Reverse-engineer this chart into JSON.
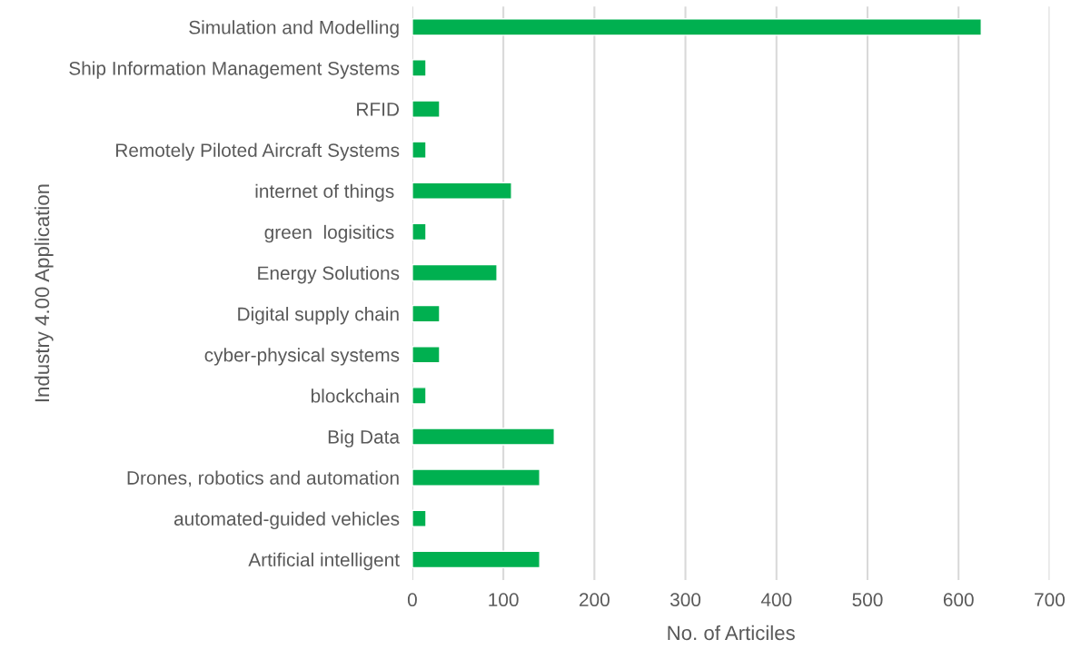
{
  "chart_data": {
    "type": "bar",
    "orientation": "horizontal",
    "xlabel": "No. of Articiles",
    "ylabel": "Industry 4.00 Application",
    "categories": [
      "Simulation and Modelling",
      "Ship Information Management Systems",
      "RFID",
      "Remotely Piloted Aircraft Systems",
      "internet of things ",
      "green  logisitics ",
      "Energy Solutions",
      "Digital supply chain",
      "cyber-physical systems",
      "blockchain",
      "Big Data",
      "Drones, robotics and automation",
      "automated-guided vehicles",
      "Artificial intelligent"
    ],
    "values": [
      625,
      15,
      30,
      15,
      109,
      15,
      93,
      30,
      30,
      15,
      156,
      140,
      15,
      140
    ],
    "color": "#00b050",
    "xlim": [
      0,
      700
    ],
    "xticks": [
      0,
      100,
      200,
      300,
      400,
      500,
      600,
      700
    ],
    "grid": "x",
    "legend": false
  }
}
